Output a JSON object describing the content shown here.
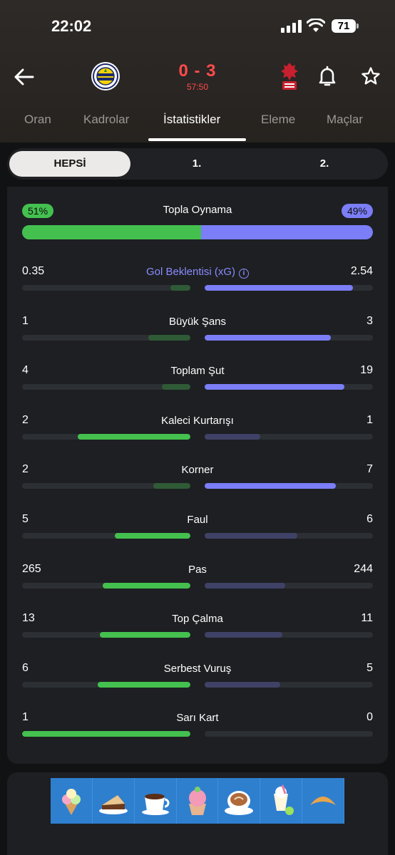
{
  "status_bar": {
    "time": "22:02",
    "battery": "71"
  },
  "match": {
    "score": "0 - 3",
    "clock": "57:50",
    "home_color": "#1b2a6b",
    "away_color": "#c8202e"
  },
  "tabs": [
    {
      "label": "Oran"
    },
    {
      "label": "Kadrolar"
    },
    {
      "label": "İstatistikler"
    },
    {
      "label": "Eleme"
    },
    {
      "label": "Maçlar"
    }
  ],
  "active_tab": 2,
  "segments": [
    {
      "label": "HEPSİ"
    },
    {
      "label": "1."
    },
    {
      "label": "2."
    }
  ],
  "possession": {
    "title": "Topla Oynama",
    "home": "51%",
    "away": "49%",
    "home_fraction": 0.51
  },
  "stats": [
    {
      "label": "Gol Beklentisi (xG)",
      "home": "0.35",
      "away": "2.54",
      "home_fill": 0.12,
      "away_fill": 0.88,
      "highlight": "away",
      "accent": true
    },
    {
      "label": "Büyük Şans",
      "home": "1",
      "away": "3",
      "home_fill": 0.25,
      "away_fill": 0.75,
      "highlight": "away"
    },
    {
      "label": "Toplam Şut",
      "home": "4",
      "away": "19",
      "home_fill": 0.17,
      "away_fill": 0.83,
      "highlight": "away"
    },
    {
      "label": "Kaleci Kurtarışı",
      "home": "2",
      "away": "1",
      "home_fill": 0.67,
      "away_fill": 0.33,
      "highlight": "home"
    },
    {
      "label": "Korner",
      "home": "2",
      "away": "7",
      "home_fill": 0.22,
      "away_fill": 0.78,
      "highlight": "away"
    },
    {
      "label": "Faul",
      "home": "5",
      "away": "6",
      "home_fill": 0.45,
      "away_fill": 0.55,
      "highlight": "home"
    },
    {
      "label": "Pas",
      "home": "265",
      "away": "244",
      "home_fill": 0.52,
      "away_fill": 0.48,
      "highlight": "home"
    },
    {
      "label": "Top Çalma",
      "home": "13",
      "away": "11",
      "home_fill": 0.54,
      "away_fill": 0.46,
      "highlight": "home"
    },
    {
      "label": "Serbest Vuruş",
      "home": "6",
      "away": "5",
      "home_fill": 0.55,
      "away_fill": 0.45,
      "highlight": "home"
    },
    {
      "label": "Sarı Kart",
      "home": "1",
      "away": "0",
      "home_fill": 1.0,
      "away_fill": 0.0,
      "highlight": "home"
    }
  ],
  "colors": {
    "home_strong": "#44c04f",
    "home_weak": "#2f5a36",
    "away_strong": "#7b7ef7",
    "away_weak": "#3f4266"
  },
  "ad_icons": [
    "ice-cream-icon",
    "cake-slice-icon",
    "coffee-cup-icon",
    "cupcake-icon",
    "cappuccino-icon",
    "milkshake-icon",
    "croissant-icon"
  ]
}
